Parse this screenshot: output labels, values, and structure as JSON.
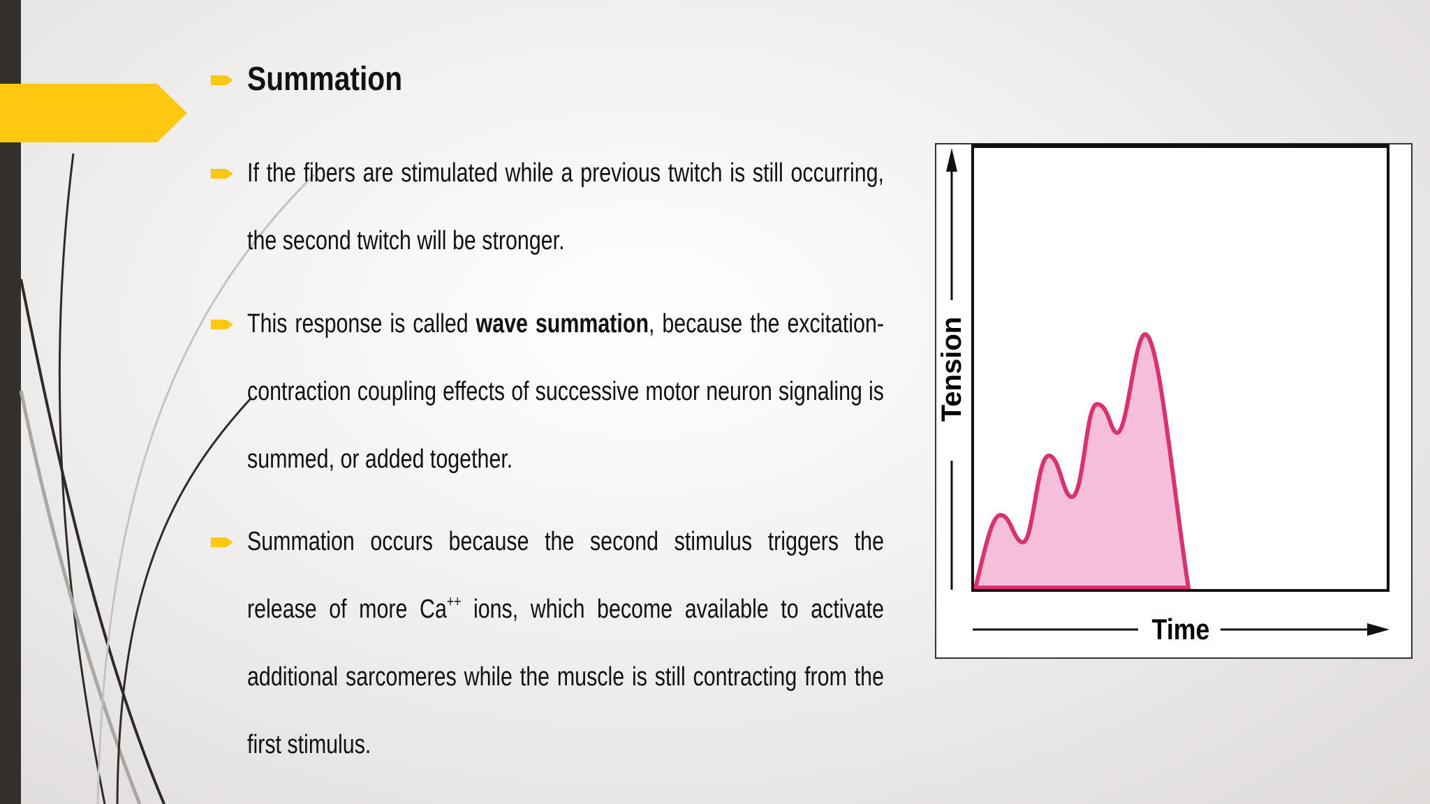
{
  "header": {
    "title": "Summation"
  },
  "bullets": [
    {
      "runs": [
        {
          "text": "If the fibers are stimulated while a previous twitch is still occurring, the second twitch will be stronger."
        }
      ]
    },
    {
      "runs": [
        {
          "text": "This response is called "
        },
        {
          "text": "wave summation",
          "bold": true
        },
        {
          "text": ", because the excitation-contraction coupling effects of successive motor neuron signaling is summed, or added together."
        }
      ]
    },
    {
      "runs": [
        {
          "text": "Summation occurs because the second stimulus triggers the release of more Ca"
        },
        {
          "text": "++",
          "sup": true
        },
        {
          "text": " ions, which become available to activate additional sarcomeres while the muscle is still contracting from the first stimulus."
        }
      ]
    }
  ],
  "figure": {
    "y_label": "Tension",
    "x_label": "Time"
  }
}
